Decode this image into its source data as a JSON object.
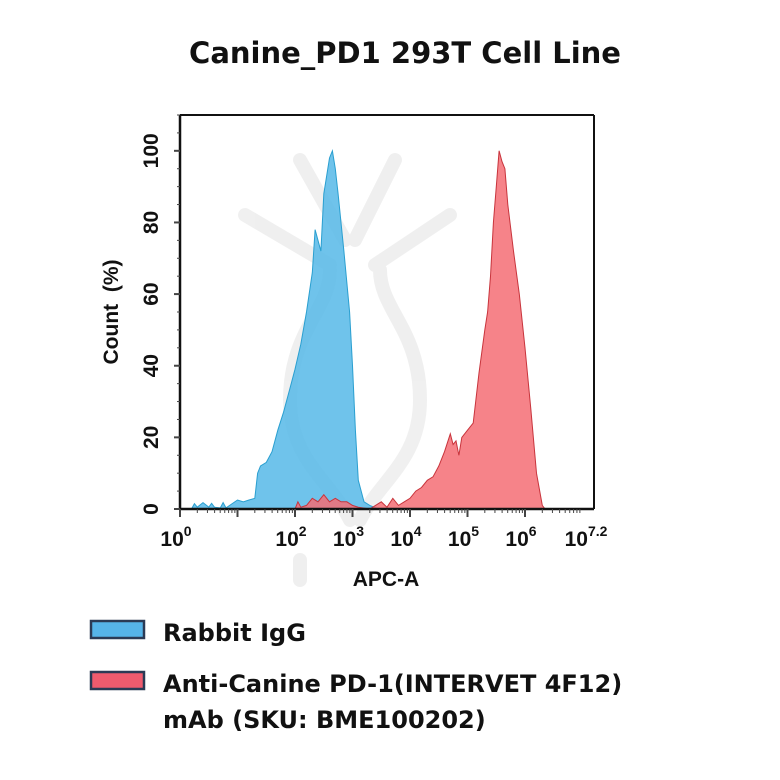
{
  "chart_data": {
    "type": "area",
    "title": "Canine_PD1 293T Cell Line",
    "xlabel": "APC-A",
    "ylabel": "Count  (%)",
    "x_scale": "log10",
    "xlim_log10": [
      0,
      7.2
    ],
    "ylim": [
      0,
      110
    ],
    "x_tick_labels": [
      {
        "base": "10",
        "exp": "0",
        "log": 0
      },
      {
        "base": "10",
        "exp": "2",
        "log": 2
      },
      {
        "base": "10",
        "exp": "3",
        "log": 3
      },
      {
        "base": "10",
        "exp": "4",
        "log": 4
      },
      {
        "base": "10",
        "exp": "5",
        "log": 5
      },
      {
        "base": "10",
        "exp": "6",
        "log": 6
      },
      {
        "base": "10",
        "exp": "7.2",
        "log": 7.2
      }
    ],
    "y_ticks": [
      0,
      20,
      40,
      60,
      80,
      100
    ],
    "grid": false,
    "legend_position": "bottom",
    "series": [
      {
        "name": "Rabbit IgG",
        "color": "#56b9e8",
        "edge": "#2a9fd0",
        "x_log10": [
          0.2,
          0.25,
          0.3,
          0.4,
          0.5,
          0.55,
          0.6,
          0.7,
          0.75,
          0.8,
          1.0,
          1.1,
          1.2,
          1.3,
          1.35,
          1.4,
          1.5,
          1.6,
          1.7,
          1.8,
          1.9,
          2.0,
          2.1,
          2.2,
          2.3,
          2.35,
          2.4,
          2.45,
          2.5,
          2.6,
          2.65,
          2.7,
          2.75,
          2.85,
          2.95,
          3.0,
          3.05,
          3.1,
          3.2,
          3.3,
          3.45
        ],
        "count_pct": [
          0,
          1.5,
          0.5,
          1.8,
          0.5,
          1.6,
          0.5,
          0.3,
          1.8,
          0.3,
          2.5,
          2,
          2.5,
          3,
          10,
          12,
          13,
          16,
          22,
          27,
          33,
          39,
          46,
          55,
          66,
          78,
          75,
          72,
          88,
          98,
          100,
          95,
          88,
          72,
          55,
          40,
          22,
          8,
          2,
          1,
          0
        ]
      },
      {
        "name": "Anti-Canine PD-1(INTERVET 4F12) mAb (SKU: BME100202)",
        "color": "#f56d74",
        "edge": "#c8343c",
        "x_log10": [
          2.0,
          2.05,
          2.1,
          2.2,
          2.3,
          2.4,
          2.5,
          2.6,
          2.7,
          2.8,
          2.9,
          3.0,
          3.1,
          3.3,
          3.4,
          3.5,
          3.6,
          3.7,
          3.8,
          3.9,
          4.0,
          4.1,
          4.2,
          4.3,
          4.4,
          4.5,
          4.6,
          4.7,
          4.75,
          4.8,
          4.85,
          4.9,
          5.0,
          5.1,
          5.2,
          5.3,
          5.35,
          5.4,
          5.45,
          5.5,
          5.55,
          5.6,
          5.65,
          5.7,
          5.8,
          5.9,
          6.0,
          6.1,
          6.2,
          6.3,
          6.35
        ],
        "count_pct": [
          0,
          2,
          0.5,
          1,
          3,
          2,
          4,
          2,
          3,
          2,
          2,
          1,
          0.5,
          0,
          1,
          2,
          0.5,
          3,
          1,
          2,
          3,
          5,
          6,
          8,
          9,
          12,
          16,
          21,
          18,
          19,
          15,
          20,
          22,
          24,
          38,
          50,
          55,
          65,
          80,
          90,
          100,
          97,
          95,
          85,
          72,
          60,
          45,
          28,
          10,
          1,
          0
        ]
      }
    ]
  },
  "legend": [
    {
      "label": "Rabbit IgG",
      "color": "#56b4e9"
    },
    {
      "label": "Anti-Canine PD-1(INTERVET 4F12)",
      "label_line2": "mAb (SKU: BME100202)",
      "color": "#ef5b6e"
    }
  ]
}
